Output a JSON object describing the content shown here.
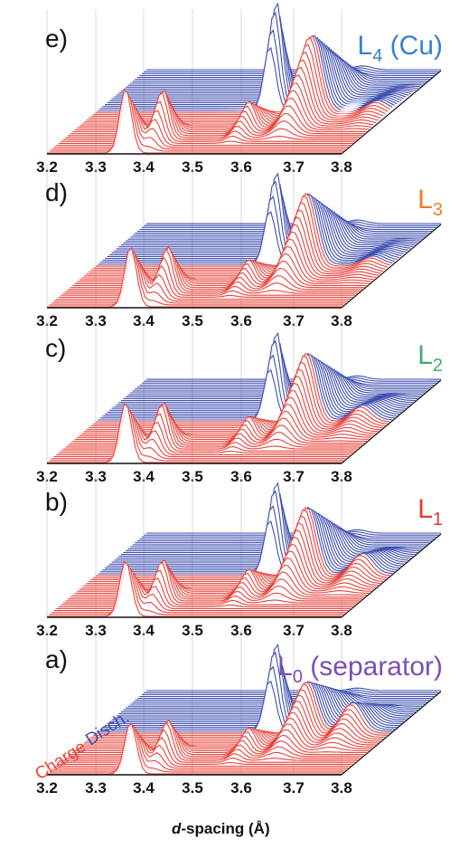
{
  "figure": {
    "axis_title_italic": "d",
    "axis_title_rest": "-spacing (Å)",
    "charge_label": "Charge",
    "discharge_label": "Disch.",
    "colors": {
      "charge": "#e8423a",
      "discharge": "#3f4fb0"
    }
  },
  "chart_data": [
    {
      "type": "line",
      "panel": "e)",
      "layer_main": "L",
      "layer_sub": "4",
      "layer_suffix": " (Cu)",
      "layer_color": "#3a7fd0",
      "x_ticks": [
        "3.2",
        "3.3",
        "3.4",
        "3.5",
        "3.6",
        "3.7",
        "3.8"
      ],
      "xlim": [
        3.2,
        3.8
      ],
      "peaks": {
        "stage1": 3.36,
        "stage2": 3.4,
        "graphite_lic12": 3.55,
        "lic6": 3.64,
        "extra": 3.77
      },
      "peak_heights": {
        "stage1": 0.75,
        "lic12": 1.25,
        "lic6": 0.9,
        "extra": 0.12
      }
    },
    {
      "type": "line",
      "panel": "d)",
      "layer_main": "L",
      "layer_sub": "3",
      "layer_suffix": "",
      "layer_color": "#f07a2a",
      "x_ticks": [
        "3.2",
        "3.3",
        "3.4",
        "3.5",
        "3.6",
        "3.7",
        "3.8"
      ],
      "xlim": [
        3.2,
        3.8
      ],
      "peaks": {
        "stage1": 3.37,
        "stage2": 3.41,
        "graphite_lic12": 3.55,
        "lic6": 3.63,
        "extra": 3.76
      },
      "peak_heights": {
        "stage1": 0.7,
        "lic12": 1.05,
        "lic6": 0.85,
        "extra": 0.1
      }
    },
    {
      "type": "line",
      "panel": "c)",
      "layer_main": "L",
      "layer_sub": "2",
      "layer_suffix": "",
      "layer_color": "#3fae6a",
      "x_ticks": [
        "3.2",
        "3.3",
        "3.4",
        "3.5",
        "3.6",
        "3.7",
        "3.8"
      ],
      "xlim": [
        3.2,
        3.8
      ],
      "peaks": {
        "stage1": 3.36,
        "stage2": 3.4,
        "graphite_lic12": 3.55,
        "lic6": 3.63,
        "extra": 3.74
      },
      "peak_heights": {
        "stage1": 0.7,
        "lic12": 1.0,
        "lic6": 0.8,
        "extra": 0.18
      }
    },
    {
      "type": "line",
      "panel": "b)",
      "layer_main": "L",
      "layer_sub": "1",
      "layer_suffix": "",
      "layer_color": "#e33b34",
      "x_ticks": [
        "3.2",
        "3.3",
        "3.4",
        "3.5",
        "3.6",
        "3.7",
        "3.8"
      ],
      "xlim": [
        3.2,
        3.8
      ],
      "peaks": {
        "stage1": 3.36,
        "stage2": 3.4,
        "graphite_lic12": 3.55,
        "lic6": 3.63,
        "extra": 3.74
      },
      "peak_heights": {
        "stage1": 0.65,
        "lic12": 1.05,
        "lic6": 0.8,
        "extra": 0.25
      }
    },
    {
      "type": "line",
      "panel": "a)",
      "layer_main": "L",
      "layer_sub": "0",
      "layer_suffix": " (separator)",
      "layer_color": "#7a4fb5",
      "x_ticks": [
        "3.2",
        "3.3",
        "3.4",
        "3.5",
        "3.6",
        "3.7",
        "3.8"
      ],
      "xlim": [
        3.2,
        3.8
      ],
      "peaks": {
        "stage1": 3.37,
        "stage2": 3.41,
        "graphite_lic12": 3.55,
        "lic6": 3.63,
        "extra": 3.72
      },
      "peak_heights": {
        "stage1": 0.6,
        "lic12": 1.0,
        "lic6": 0.6,
        "extra": 0.35
      }
    }
  ]
}
